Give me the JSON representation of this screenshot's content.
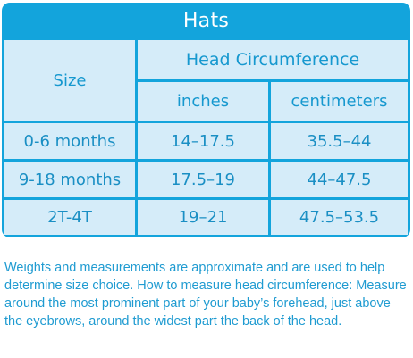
{
  "table": {
    "title": "Hats",
    "size_header": "Size",
    "group_header": "Head Circumference",
    "unit_headers": [
      "inches",
      "centimeters"
    ],
    "rows": [
      {
        "size": "0-6 months",
        "inches": "14–17.5",
        "cm": "35.5–44"
      },
      {
        "size": "9-18 months",
        "inches": "17.5–19",
        "cm": "44–47.5"
      },
      {
        "size": "2T-4T",
        "inches": "19–21",
        "cm": "47.5–53.5"
      }
    ]
  },
  "note": "Weights and measurements are approximate and are used to help determine size choice. How to measure head circumference: Measure around the most prominent part of your baby’s forehead, just above the eyebrows, around the widest part the back of the head.",
  "colors": {
    "border": "#13a4dc",
    "cell_fill": "#d5ecf9",
    "text": "#1698cf",
    "title_text": "#ffffff"
  }
}
